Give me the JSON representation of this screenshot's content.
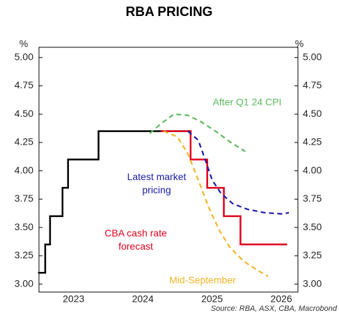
{
  "chart_data": {
    "type": "line",
    "title": "RBA PRICING",
    "y_unit_label": "%",
    "xlim": [
      2023.0,
      2026.74
    ],
    "xticks": [
      {
        "value": 2023.5,
        "label": "2023"
      },
      {
        "value": 2024.5,
        "label": "2024"
      },
      {
        "value": 2025.5,
        "label": "2025"
      },
      {
        "value": 2026.5,
        "label": "2026"
      }
    ],
    "ylim": [
      2.93,
      5.09
    ],
    "yticks": [
      {
        "value": 3.0,
        "label": "3.00"
      },
      {
        "value": 3.25,
        "label": "3.25"
      },
      {
        "value": 3.5,
        "label": "3.50"
      },
      {
        "value": 3.75,
        "label": "3.75"
      },
      {
        "value": 4.0,
        "label": "4.00"
      },
      {
        "value": 4.25,
        "label": "4.25"
      },
      {
        "value": 4.5,
        "label": "4.50"
      },
      {
        "value": 4.75,
        "label": "4.75"
      },
      {
        "value": 5.0,
        "label": "5.00"
      }
    ],
    "series": [
      {
        "color": "#000000",
        "step": true,
        "dashed": false,
        "x": [
          2023.0,
          2023.09,
          2023.16,
          2023.34,
          2023.42,
          2023.86,
          2025.19
        ],
        "values": [
          3.1,
          3.35,
          3.6,
          3.85,
          4.1,
          4.35,
          4.35
        ]
      },
      {
        "name": "CBA cash rate forecast",
        "color": "#e0001b",
        "step": true,
        "dashed": false,
        "x": [
          2024.77,
          2025.19,
          2025.43,
          2025.67,
          2025.91,
          2026.57
        ],
        "values": [
          4.35,
          4.1,
          3.85,
          3.6,
          3.35,
          3.35
        ]
      },
      {
        "name": "After Q1 24 CPI",
        "color": "#5cb85c",
        "step": false,
        "dashed": true,
        "x": [
          2024.6,
          2024.77,
          2024.95,
          2025.15,
          2025.35,
          2025.55,
          2025.75,
          2025.98
        ],
        "values": [
          4.33,
          4.42,
          4.5,
          4.49,
          4.43,
          4.35,
          4.26,
          4.17
        ]
      },
      {
        "name": "Latest market pricing",
        "color": "#1a1aa6",
        "step": false,
        "dashed": true,
        "x": [
          2025.15,
          2025.3,
          2025.4,
          2025.5,
          2025.63,
          2025.8,
          2026.01,
          2026.26,
          2026.51,
          2026.61
        ],
        "values": [
          4.35,
          4.27,
          4.1,
          3.92,
          3.8,
          3.71,
          3.66,
          3.63,
          3.62,
          3.63
        ]
      },
      {
        "name": "Mid-September",
        "color": "#f0b429",
        "step": false,
        "dashed": true,
        "x": [
          2024.8,
          2025.0,
          2025.15,
          2025.3,
          2025.45,
          2025.6,
          2025.75,
          2025.96,
          2026.16,
          2026.31
        ],
        "values": [
          4.35,
          4.3,
          4.15,
          3.92,
          3.68,
          3.48,
          3.33,
          3.2,
          3.12,
          3.07
        ]
      }
    ],
    "source": "Source: RBA, ASX, CBA, Macrobond"
  }
}
